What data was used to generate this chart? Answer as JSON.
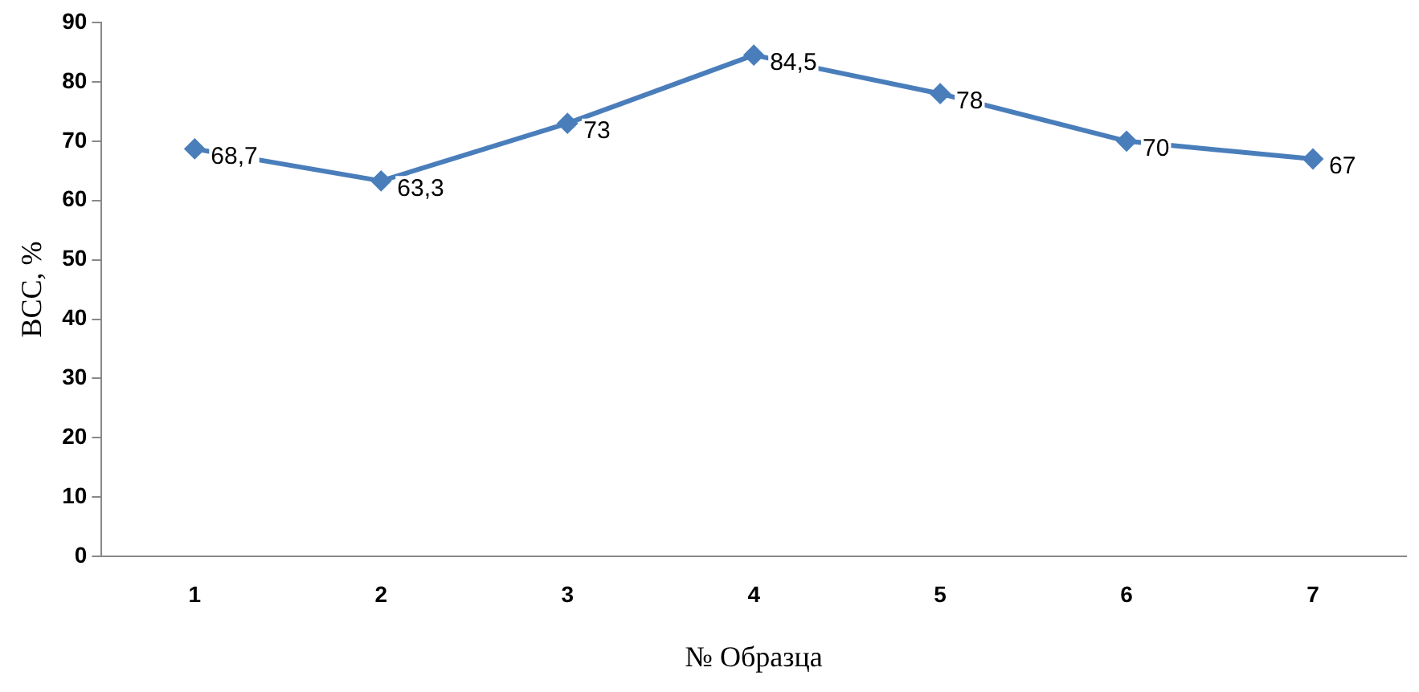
{
  "chart_data": {
    "type": "line",
    "xlabel": "№ Образца",
    "ylabel": "ВСС, %",
    "categories": [
      "1",
      "2",
      "3",
      "4",
      "5",
      "6",
      "7"
    ],
    "series": [
      {
        "color": "#4a7ebb",
        "values": [
          68.7,
          63.3,
          73,
          84.5,
          78,
          70,
          67
        ],
        "value_labels": [
          "68,7",
          "63,3",
          "73",
          "84,5",
          "78",
          "70",
          "67"
        ]
      }
    ],
    "ylim": [
      0,
      90
    ],
    "yticks": [
      0,
      10,
      20,
      30,
      40,
      50,
      60,
      70,
      80,
      90
    ],
    "grid": false,
    "legend": false,
    "marker": "diamond",
    "line_style": "solid"
  }
}
